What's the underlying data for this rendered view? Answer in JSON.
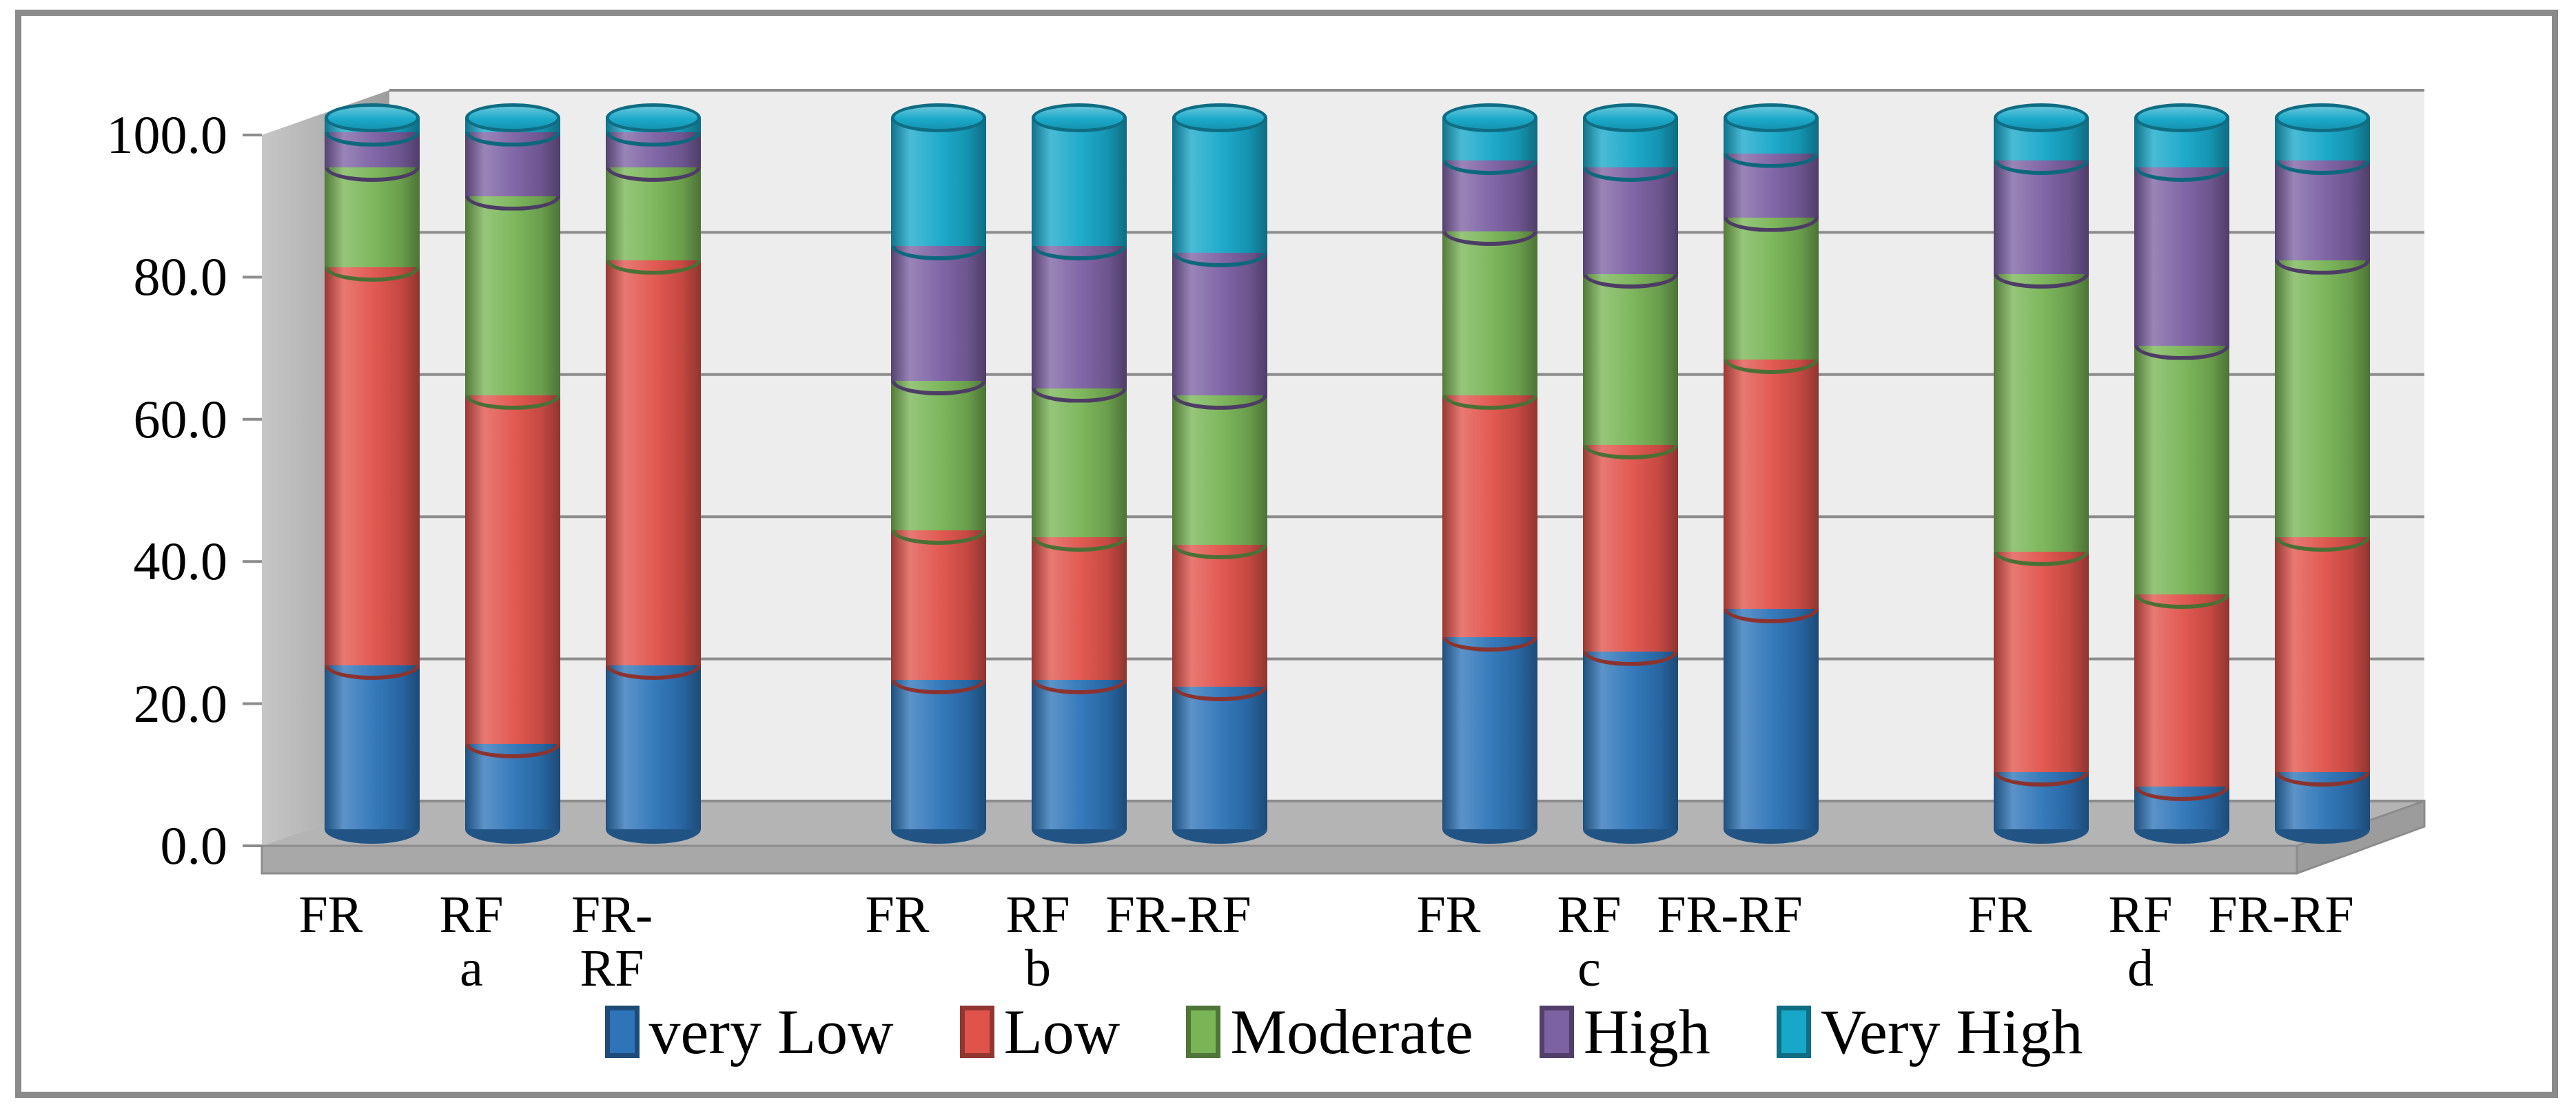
{
  "chart_data": {
    "type": "bar",
    "subtype": "3d-stacked-cylinder-percentage",
    "stacked": true,
    "title": "",
    "xlabel": "",
    "ylabel": "",
    "ylim": [
      0,
      100
    ],
    "y_tick_labels": [
      "0.0",
      "20.0",
      "40.0",
      "60.0",
      "80.0",
      "100.0"
    ],
    "grid": true,
    "legend_position": "bottom",
    "series": [
      {
        "name": "very Low",
        "color": "#2E74B8"
      },
      {
        "name": "Low",
        "color": "#E0534B"
      },
      {
        "name": "Moderate",
        "color": "#79B456"
      },
      {
        "name": "High",
        "color": "#7C61A3"
      },
      {
        "name": "Very High",
        "color": "#17A8C9"
      }
    ],
    "groups": [
      {
        "label": "a",
        "bars": [
          {
            "label": "FR",
            "label_lines": [
              "FR"
            ],
            "values": [
              23,
              56,
              14,
              5,
              2
            ]
          },
          {
            "label": "RF",
            "label_lines": [
              "RF"
            ],
            "values": [
              12,
              49,
              28,
              9,
              2
            ]
          },
          {
            "label": "FR-RF",
            "label_lines": [
              "FR-",
              "RF"
            ],
            "values": [
              23,
              57,
              13,
              5,
              2
            ]
          }
        ]
      },
      {
        "label": "b",
        "bars": [
          {
            "label": "FR",
            "label_lines": [
              "FR"
            ],
            "values": [
              21,
              21,
              21,
              19,
              18
            ]
          },
          {
            "label": "RF",
            "label_lines": [
              "RF"
            ],
            "values": [
              21,
              20,
              21,
              20,
              18
            ]
          },
          {
            "label": "FR-RF",
            "label_lines": [
              "FR-RF"
            ],
            "values": [
              20,
              20,
              21,
              20,
              19
            ]
          }
        ]
      },
      {
        "label": "c",
        "bars": [
          {
            "label": "FR",
            "label_lines": [
              "FR"
            ],
            "values": [
              27,
              34,
              23,
              10,
              6
            ]
          },
          {
            "label": "RF",
            "label_lines": [
              "RF"
            ],
            "values": [
              25,
              29,
              24,
              15,
              7
            ]
          },
          {
            "label": "FR-RF",
            "label_lines": [
              "FR-RF"
            ],
            "values": [
              31,
              35,
              20,
              9,
              5
            ]
          }
        ]
      },
      {
        "label": "d",
        "bars": [
          {
            "label": "FR",
            "label_lines": [
              "FR"
            ],
            "values": [
              8,
              31,
              39,
              16,
              6
            ]
          },
          {
            "label": "RF",
            "label_lines": [
              "RF"
            ],
            "values": [
              6,
              27,
              35,
              25,
              7
            ]
          },
          {
            "label": "FR-RF",
            "label_lines": [
              "FR-RF"
            ],
            "values": [
              8,
              33,
              39,
              14,
              6
            ]
          }
        ]
      }
    ]
  },
  "colors": {
    "background": "#ffffff",
    "frame": "#8a8a8a",
    "back_wall": "#ededed",
    "side_wall_light": "#c6c6c6",
    "side_wall_dark": "#9d9d9d",
    "floor_top": "#b4b4b4",
    "floor_front": "#a8a8a8",
    "floor_edge": "#8c8c8c",
    "gridline": "#8c8c8c",
    "text": "#000000"
  }
}
